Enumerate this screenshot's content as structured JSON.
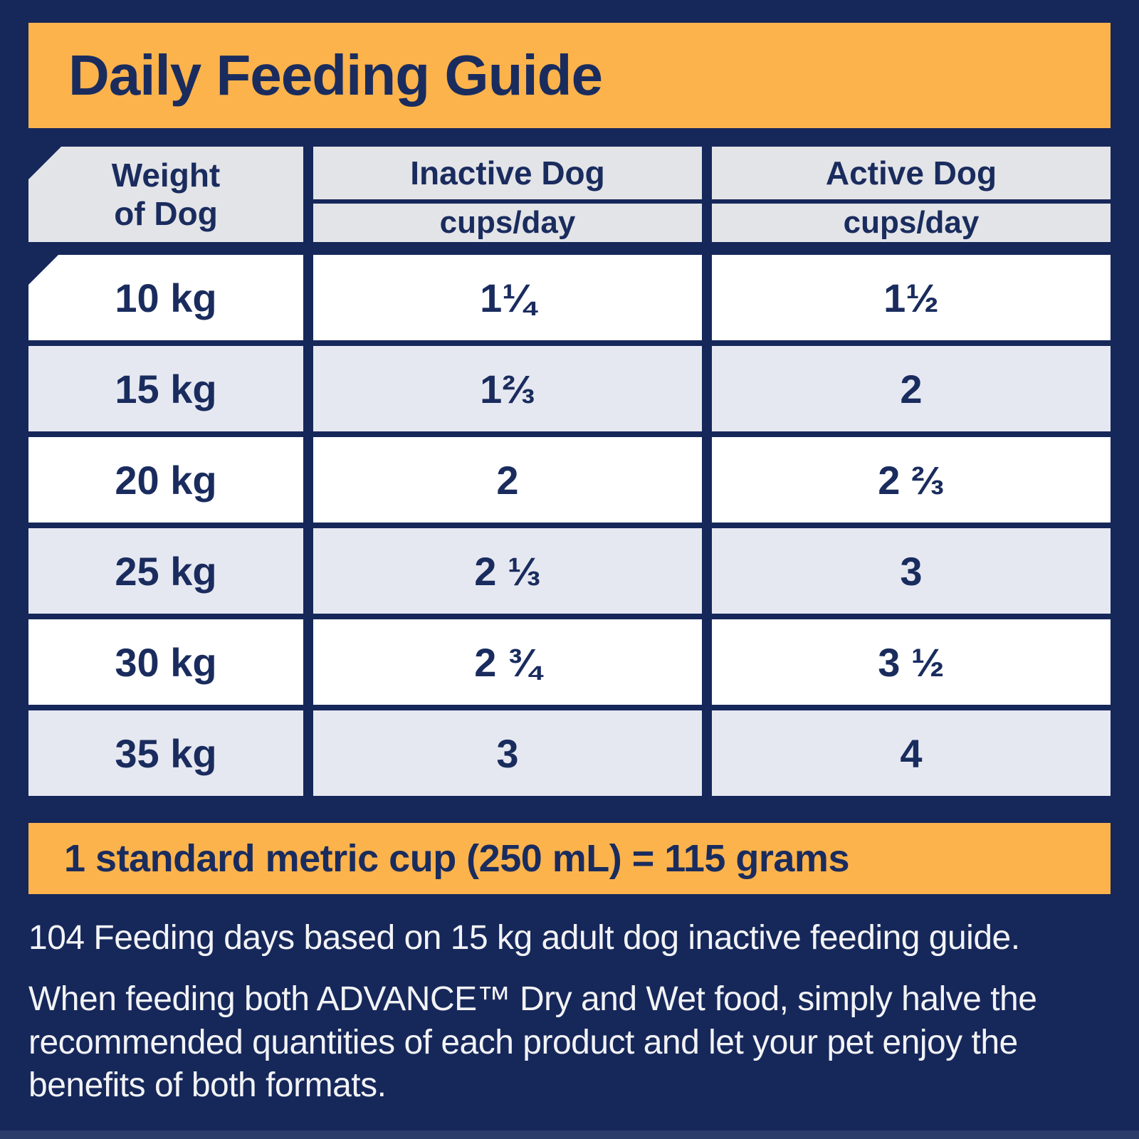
{
  "title": "Daily Feeding Guide",
  "colors": {
    "navy": "#16275A",
    "navy-text": "#1A2C5E",
    "orange": "#FCB34C",
    "gray-header": "#E3E4E7",
    "gray-row": "#E6E8F1",
    "footer-text": "#F2F3F5",
    "bottom-strip": "#2B3C6B"
  },
  "table": {
    "weight_header_line1": "Weight",
    "weight_header_line2": "of Dog",
    "columns": [
      {
        "label": "Inactive Dog",
        "unit": "cups/day"
      },
      {
        "label": "Active Dog",
        "unit": "cups/day"
      }
    ],
    "rows": [
      {
        "weight": "10 kg",
        "inactive": "1¼",
        "active": "1½"
      },
      {
        "weight": "15 kg",
        "inactive": "1⅔",
        "active": "2"
      },
      {
        "weight": "20 kg",
        "inactive": "2",
        "active": "2 ⅔"
      },
      {
        "weight": "25 kg",
        "inactive": "2 ⅓",
        "active": "3"
      },
      {
        "weight": "30 kg",
        "inactive": "2 ¾",
        "active": "3 ½"
      },
      {
        "weight": "35 kg",
        "inactive": "3",
        "active": "4"
      }
    ]
  },
  "cup_note": "1 standard metric cup (250 mL) = 115 grams",
  "footnotes": [
    "104 Feeding days based on 15 kg adult dog inactive feeding guide.",
    "When feeding both ADVANCE™ Dry and Wet food, simply halve the recommended quantities of each product and let your pet enjoy the benefits of both formats."
  ]
}
